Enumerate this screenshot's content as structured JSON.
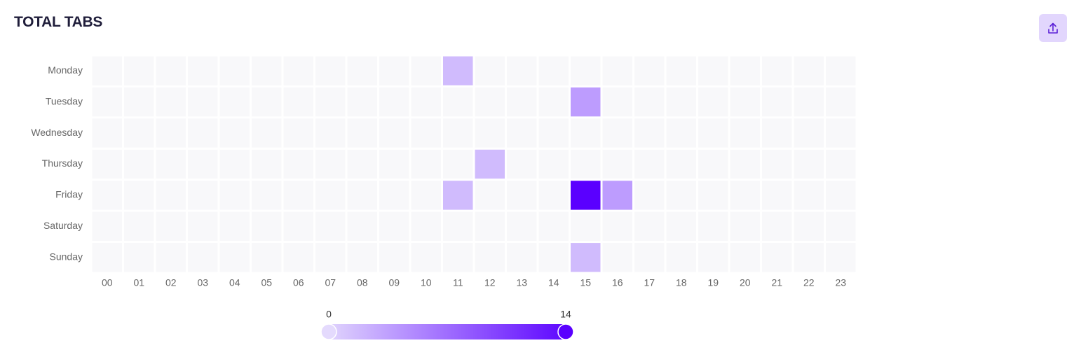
{
  "chart_data": {
    "type": "heatmap",
    "title": "TOTAL TABS",
    "categories": [
      "00",
      "01",
      "02",
      "03",
      "04",
      "05",
      "06",
      "07",
      "08",
      "09",
      "10",
      "11",
      "12",
      "13",
      "14",
      "15",
      "16",
      "17",
      "18",
      "19",
      "20",
      "21",
      "22",
      "23"
    ],
    "rows": [
      "Monday",
      "Tuesday",
      "Wednesday",
      "Thursday",
      "Friday",
      "Saturday",
      "Sunday"
    ],
    "values": [
      [
        0,
        0,
        0,
        0,
        0,
        0,
        0,
        0,
        0,
        0,
        0,
        2,
        0,
        0,
        0,
        0,
        0,
        0,
        0,
        0,
        0,
        0,
        0,
        0
      ],
      [
        0,
        0,
        0,
        0,
        0,
        0,
        0,
        0,
        0,
        0,
        0,
        0,
        0,
        0,
        0,
        4,
        0,
        0,
        0,
        0,
        0,
        0,
        0,
        0
      ],
      [
        0,
        0,
        0,
        0,
        0,
        0,
        0,
        0,
        0,
        0,
        0,
        0,
        0,
        0,
        0,
        0,
        0,
        0,
        0,
        0,
        0,
        0,
        0,
        0
      ],
      [
        0,
        0,
        0,
        0,
        0,
        0,
        0,
        0,
        0,
        0,
        0,
        0,
        2,
        0,
        0,
        0,
        0,
        0,
        0,
        0,
        0,
        0,
        0,
        0
      ],
      [
        0,
        0,
        0,
        0,
        0,
        0,
        0,
        0,
        0,
        0,
        0,
        2,
        0,
        0,
        0,
        14,
        4,
        0,
        0,
        0,
        0,
        0,
        0,
        0
      ],
      [
        0,
        0,
        0,
        0,
        0,
        0,
        0,
        0,
        0,
        0,
        0,
        0,
        0,
        0,
        0,
        0,
        0,
        0,
        0,
        0,
        0,
        0,
        0,
        0
      ],
      [
        0,
        0,
        0,
        0,
        0,
        0,
        0,
        0,
        0,
        0,
        0,
        0,
        0,
        0,
        0,
        2,
        0,
        0,
        0,
        0,
        0,
        0,
        0,
        0
      ]
    ],
    "visual_map": {
      "min": 0,
      "max": 14,
      "colors": [
        "#e4dafd",
        "#5a00ff"
      ]
    },
    "empty_color": "#f8f8fa"
  }
}
